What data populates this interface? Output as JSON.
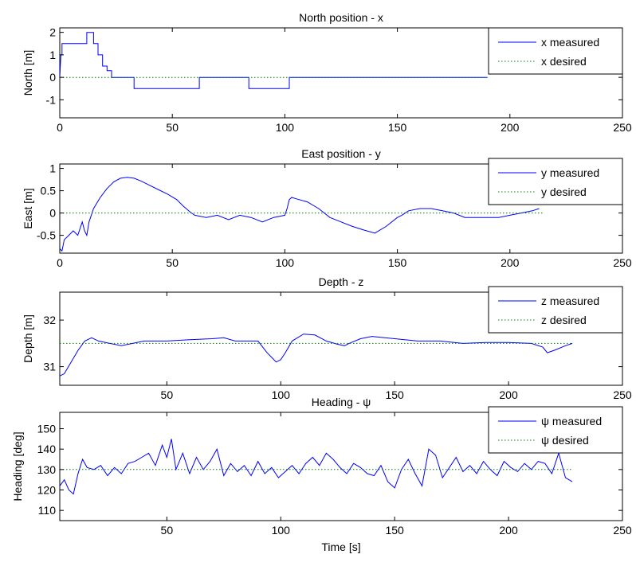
{
  "chart_data": [
    {
      "type": "line",
      "title": "North position - x",
      "xlabel": "",
      "ylabel": "North [m]",
      "xlim": [
        0,
        250
      ],
      "ylim": [
        -1.8,
        2.2
      ],
      "xticks": [
        0,
        50,
        100,
        150,
        200,
        250
      ],
      "yticks": [
        -1,
        0,
        1,
        2
      ],
      "grid": false,
      "legend": "top-right",
      "series": [
        {
          "name": "x measured",
          "color": "#0000ff",
          "style": "solid",
          "x": [
            0,
            0.5,
            1,
            1,
            12,
            12,
            15,
            15,
            17,
            17,
            19,
            19,
            21,
            21,
            23,
            23,
            25,
            25,
            33,
            33,
            62,
            62,
            84,
            84,
            102,
            102,
            190
          ],
          "y": [
            0,
            1,
            1,
            1.5,
            1.5,
            2,
            2,
            1.5,
            1.5,
            1.0,
            1.0,
            0.5,
            0.5,
            0.3,
            0.3,
            0,
            0,
            0,
            0,
            -0.5,
            -0.5,
            0,
            0,
            -0.5,
            -0.5,
            0,
            0
          ]
        },
        {
          "name": "x desired",
          "color": "#008000",
          "style": "dotted",
          "x": [
            0,
            190
          ],
          "y": [
            0,
            0
          ]
        }
      ]
    },
    {
      "type": "line",
      "title": "East position - y",
      "xlabel": "",
      "ylabel": "East [m]",
      "xlim": [
        0,
        250
      ],
      "ylim": [
        -0.9,
        1.1
      ],
      "xticks": [
        0,
        50,
        100,
        150,
        200,
        250
      ],
      "yticks": [
        -0.5,
        0,
        0.5,
        1
      ],
      "grid": false,
      "legend": "top-right",
      "series": [
        {
          "name": "y measured",
          "color": "#0000ff",
          "style": "solid",
          "x": [
            0,
            1,
            2,
            4,
            6,
            8,
            10,
            11,
            12,
            13,
            15,
            18,
            21,
            24,
            27,
            30,
            33,
            36,
            40,
            44,
            48,
            52,
            55,
            58,
            60,
            65,
            70,
            75,
            80,
            85,
            90,
            95,
            100,
            101,
            102,
            103,
            105,
            110,
            115,
            120,
            125,
            130,
            135,
            140,
            145,
            150,
            152,
            155,
            160,
            165,
            170,
            175,
            180,
            185,
            190,
            195,
            200,
            205,
            210,
            213
          ],
          "y": [
            -0.8,
            -0.85,
            -0.6,
            -0.5,
            -0.4,
            -0.5,
            -0.2,
            -0.4,
            -0.5,
            -0.2,
            0.1,
            0.35,
            0.55,
            0.7,
            0.78,
            0.8,
            0.78,
            0.72,
            0.62,
            0.52,
            0.42,
            0.3,
            0.15,
            0.02,
            -0.05,
            -0.1,
            -0.05,
            -0.15,
            -0.05,
            -0.1,
            -0.2,
            -0.1,
            -0.05,
            0.1,
            0.3,
            0.35,
            0.32,
            0.25,
            0.1,
            -0.1,
            -0.2,
            -0.3,
            -0.38,
            -0.45,
            -0.3,
            -0.1,
            -0.05,
            0.05,
            0.1,
            0.1,
            0.05,
            0.0,
            -0.1,
            -0.1,
            -0.1,
            -0.1,
            -0.05,
            0.0,
            0.05,
            0.1
          ]
        },
        {
          "name": "y desired",
          "color": "#008000",
          "style": "dotted",
          "x": [
            0,
            215
          ],
          "y": [
            0,
            0
          ]
        }
      ]
    },
    {
      "type": "line",
      "title": "Depth - z",
      "xlabel": "",
      "ylabel": "Depth [m]",
      "xlim": [
        3,
        250
      ],
      "ylim": [
        30.6,
        32.6
      ],
      "xticks": [
        50,
        100,
        150,
        200,
        250
      ],
      "yticks": [
        31,
        32
      ],
      "grid": false,
      "legend": "top-right",
      "series": [
        {
          "name": "z measured",
          "color": "#0000ff",
          "style": "solid",
          "x": [
            3,
            5,
            8,
            11,
            14,
            17,
            20,
            25,
            30,
            35,
            40,
            50,
            60,
            70,
            75,
            80,
            90,
            94,
            96,
            98,
            100,
            102,
            105,
            110,
            115,
            120,
            125,
            128,
            130,
            135,
            140,
            150,
            160,
            170,
            180,
            190,
            200,
            210,
            215,
            217,
            220,
            225,
            228
          ],
          "y": [
            30.8,
            30.85,
            31.1,
            31.35,
            31.55,
            31.62,
            31.55,
            31.5,
            31.45,
            31.5,
            31.55,
            31.55,
            31.58,
            31.6,
            31.62,
            31.55,
            31.55,
            31.3,
            31.2,
            31.1,
            31.15,
            31.3,
            31.55,
            31.7,
            31.68,
            31.55,
            31.48,
            31.45,
            31.5,
            31.6,
            31.65,
            31.6,
            31.55,
            31.55,
            31.5,
            31.52,
            31.52,
            31.5,
            31.42,
            31.3,
            31.35,
            31.45,
            31.5
          ]
        },
        {
          "name": "z desired",
          "color": "#008000",
          "style": "dotted",
          "x": [
            3,
            228
          ],
          "y": [
            31.5,
            31.5
          ]
        }
      ]
    },
    {
      "type": "line",
      "title": "Heading - ψ",
      "xlabel": "Time [s]",
      "ylabel": "Heading [deg]",
      "xlim": [
        3,
        250
      ],
      "ylim": [
        105,
        158
      ],
      "xticks": [
        50,
        100,
        150,
        200,
        250
      ],
      "yticks": [
        110,
        120,
        130,
        140,
        150
      ],
      "grid": false,
      "legend": "top-right",
      "series": [
        {
          "name": "ψ measured",
          "color": "#0000ff",
          "style": "solid",
          "x": [
            3,
            5,
            7,
            9,
            11,
            13,
            15,
            18,
            21,
            24,
            27,
            30,
            33,
            36,
            39,
            42,
            45,
            48,
            50,
            52,
            54,
            57,
            60,
            63,
            66,
            69,
            72,
            75,
            78,
            81,
            84,
            87,
            90,
            93,
            96,
            99,
            102,
            105,
            108,
            111,
            114,
            117,
            120,
            123,
            126,
            129,
            132,
            135,
            138,
            141,
            144,
            147,
            150,
            153,
            156,
            159,
            162,
            165,
            168,
            171,
            174,
            177,
            180,
            183,
            186,
            189,
            192,
            195,
            198,
            201,
            204,
            207,
            210,
            213,
            216,
            219,
            222,
            225,
            228
          ],
          "y": [
            122,
            125,
            120,
            118,
            128,
            135,
            131,
            130,
            132,
            127,
            131,
            128,
            133,
            134,
            136,
            138,
            132,
            142,
            136,
            145,
            130,
            138,
            128,
            136,
            130,
            134,
            140,
            127,
            133,
            129,
            132,
            127,
            134,
            128,
            131,
            126,
            129,
            132,
            128,
            133,
            136,
            132,
            138,
            135,
            131,
            128,
            133,
            131,
            128,
            127,
            132,
            124,
            121,
            130,
            135,
            128,
            122,
            140,
            137,
            126,
            131,
            136,
            129,
            132,
            128,
            134,
            130,
            127,
            134,
            131,
            129,
            133,
            130,
            134,
            133,
            128,
            138,
            126,
            124
          ]
        },
        {
          "name": "ψ desired",
          "color": "#008000",
          "style": "dotted",
          "x": [
            3,
            228
          ],
          "y": [
            130,
            130
          ]
        }
      ]
    }
  ]
}
